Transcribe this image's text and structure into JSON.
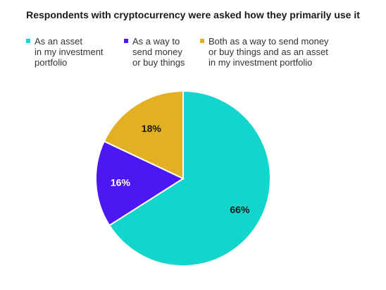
{
  "chart_data": {
    "type": "pie",
    "title": "Respondents with cryptocurrency were asked how they primarily use it",
    "slices": [
      {
        "label": "As an asset\nin my investment\nportfolio",
        "value": 66,
        "display": "66%",
        "color": "#12d6cb"
      },
      {
        "label": "As a way to\nsend money\nor buy things",
        "value": 16,
        "display": "16%",
        "color": "#4d17f4"
      },
      {
        "label": "Both as a way to send money\nor buy things and as an asset\nin my investment portfolio",
        "value": 18,
        "display": "18%",
        "color": "#e2b022"
      }
    ],
    "legend_position": "top"
  }
}
